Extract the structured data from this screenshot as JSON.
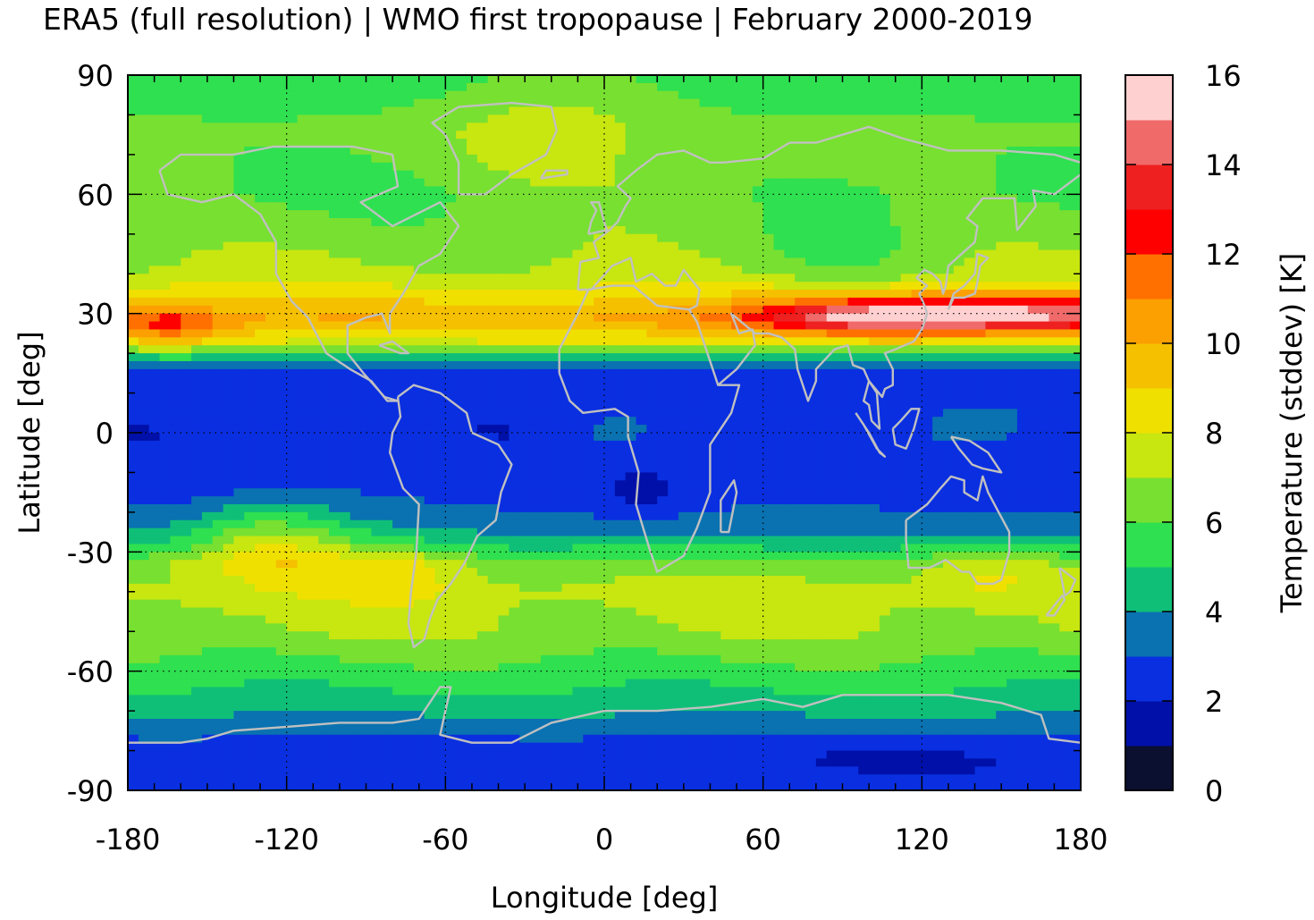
{
  "title": "ERA5 (full resolution) | WMO first tropopause | February 2000-2019",
  "chart_data": {
    "type": "heatmap",
    "title": "ERA5 (full resolution) | WMO first tropopause | February 2000-2019",
    "xlabel": "Longitude [deg]",
    "ylabel": "Latitude [deg]",
    "xlim": [
      -180,
      180
    ],
    "ylim": [
      -90,
      90
    ],
    "xticks": [
      -180,
      -120,
      -60,
      0,
      60,
      120,
      180
    ],
    "yticks": [
      90,
      60,
      30,
      0,
      -30,
      -60,
      -90
    ],
    "xtick_labels": [
      "-180",
      "-120",
      "-60",
      "0",
      "60",
      "120",
      "180"
    ],
    "ytick_labels": [
      "90",
      "60",
      "30",
      "0",
      "-30",
      "-60",
      "-90"
    ],
    "grid": true,
    "coastlines": true,
    "colorbar": {
      "label": "Temperature (stddev) [K]",
      "range": [
        0,
        16
      ],
      "ticks": [
        0,
        2,
        4,
        6,
        8,
        10,
        12,
        14,
        16
      ],
      "tick_labels": [
        "0",
        "2",
        "4",
        "6",
        "8",
        "10",
        "12",
        "14",
        "16"
      ],
      "levels": [
        {
          "min": 0,
          "max": 1,
          "color": "#0b0f30"
        },
        {
          "min": 1,
          "max": 2,
          "color": "#0010a8"
        },
        {
          "min": 2,
          "max": 3,
          "color": "#0a2fe0"
        },
        {
          "min": 3,
          "max": 4,
          "color": "#0a72b0"
        },
        {
          "min": 4,
          "max": 5,
          "color": "#0fbf78"
        },
        {
          "min": 5,
          "max": 6,
          "color": "#2fe050"
        },
        {
          "min": 6,
          "max": 7,
          "color": "#78e030"
        },
        {
          "min": 7,
          "max": 8,
          "color": "#c8e610"
        },
        {
          "min": 8,
          "max": 9,
          "color": "#f0e000"
        },
        {
          "min": 9,
          "max": 10,
          "color": "#f5c000"
        },
        {
          "min": 10,
          "max": 11,
          "color": "#fba000"
        },
        {
          "min": 11,
          "max": 12,
          "color": "#ff7000"
        },
        {
          "min": 12,
          "max": 13,
          "color": "#ff0000"
        },
        {
          "min": 13,
          "max": 14,
          "color": "#ee2020"
        },
        {
          "min": 14,
          "max": 15,
          "color": "#f06a6a"
        },
        {
          "min": 15,
          "max": 16,
          "color": "#ffd0d0"
        }
      ]
    },
    "zonal_profile": [
      {
        "lat": 90,
        "value": 5.5
      },
      {
        "lat": 75,
        "value": 6.2
      },
      {
        "lat": 60,
        "value": 5.8
      },
      {
        "lat": 50,
        "value": 6.5
      },
      {
        "lat": 40,
        "value": 7.2
      },
      {
        "lat": 33,
        "value": 9.0
      },
      {
        "lat": 28,
        "value": 10.2
      },
      {
        "lat": 23,
        "value": 8.0
      },
      {
        "lat": 19,
        "value": 4.5
      },
      {
        "lat": 15,
        "value": 2.6
      },
      {
        "lat": 0,
        "value": 2.3
      },
      {
        "lat": -15,
        "value": 2.6
      },
      {
        "lat": -22,
        "value": 3.2
      },
      {
        "lat": -28,
        "value": 4.6
      },
      {
        "lat": -33,
        "value": 6.6
      },
      {
        "lat": -40,
        "value": 7.3
      },
      {
        "lat": -50,
        "value": 7.0
      },
      {
        "lat": -60,
        "value": 5.6
      },
      {
        "lat": -68,
        "value": 4.6
      },
      {
        "lat": -75,
        "value": 3.2
      },
      {
        "lat": -82,
        "value": 2.3
      },
      {
        "lat": -90,
        "value": 2.4
      }
    ],
    "anomalies": [
      {
        "lon": 150,
        "lat": 30,
        "dlon": 70,
        "dlat": 4.5,
        "value": 5.5
      },
      {
        "lon": 95,
        "lat": 29,
        "dlon": 45,
        "dlat": 5,
        "value": 3.0
      },
      {
        "lon": -165,
        "lat": 27,
        "dlon": 18,
        "dlat": 6,
        "value": 2.5
      },
      {
        "lon": -125,
        "lat": -27,
        "dlon": 30,
        "dlat": 10,
        "value": 3.2
      },
      {
        "lon": -80,
        "lat": -35,
        "dlon": 25,
        "dlat": 8,
        "value": 1.8
      },
      {
        "lon": 145,
        "lat": -36,
        "dlon": 22,
        "dlat": 6,
        "value": 1.2
      },
      {
        "lon": 15,
        "lat": -15,
        "dlon": 10,
        "dlat": 6,
        "value": -1.0
      },
      {
        "lon": 110,
        "lat": -82,
        "dlon": 35,
        "dlat": 4,
        "value": -0.8
      },
      {
        "lon": -20,
        "lat": 75,
        "dlon": 40,
        "dlat": 15,
        "value": 1.5
      },
      {
        "lon": 90,
        "lat": 45,
        "dlon": 30,
        "dlat": 10,
        "value": -1.0
      },
      {
        "lon": 130,
        "lat": 0,
        "dlon": 30,
        "dlat": 8,
        "value": 1.0
      },
      {
        "lon": 0,
        "lat": 0,
        "dlon": 20,
        "dlat": 5,
        "value": 0.8
      },
      {
        "lon": 30,
        "lat": 60,
        "dlon": 40,
        "dlat": 8,
        "value": 0.8
      }
    ]
  }
}
